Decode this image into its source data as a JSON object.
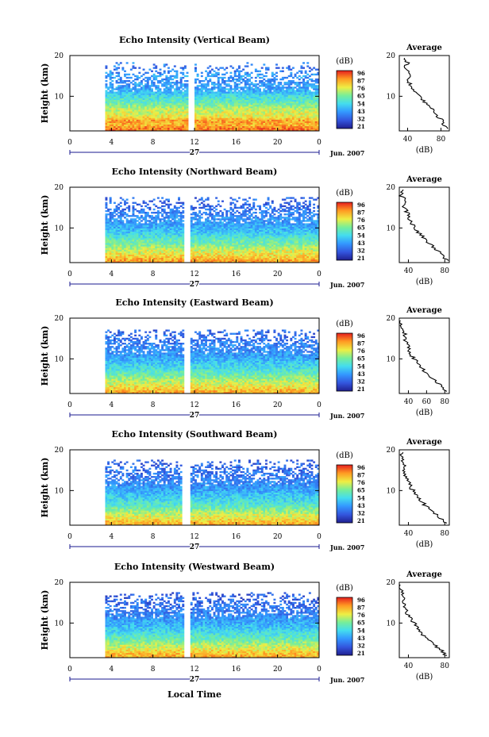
{
  "figure": {
    "xlabel": "Local Time",
    "date_label": "Jun. 2007",
    "day_label": "27",
    "x_ticks": [
      "0",
      "4",
      "8",
      "12",
      "16",
      "20",
      "0"
    ],
    "height_label": "Height (km)",
    "y_ticks": [
      "20",
      "10"
    ],
    "colorbar_unit": "(dB)",
    "colorbar_ticks": [
      "96",
      "87",
      "76",
      "65",
      "54",
      "43",
      "32",
      "21"
    ],
    "avg_title": "Average",
    "avg_unit": "(dB)"
  },
  "chart_data": [
    {
      "type": "heatmap",
      "title": "Echo Intensity (Vertical Beam)",
      "xlabel": "Local Time",
      "ylabel": "Height (km)",
      "xlim": [
        0,
        24
      ],
      "ylim": [
        1.5,
        20
      ],
      "zlim": [
        21,
        96
      ],
      "data_start_hour": 3.5,
      "gap_hours": [
        11.4,
        11.9
      ],
      "max_echo_height_km": 18.5,
      "avg_profile": {
        "x_ticks": [
          "40",
          "80"
        ],
        "xlim": [
          30,
          90
        ],
        "points": [
          [
            88,
            2
          ],
          [
            82,
            3
          ],
          [
            84,
            4
          ],
          [
            75,
            5
          ],
          [
            72,
            6
          ],
          [
            70,
            7
          ],
          [
            63,
            8
          ],
          [
            58,
            9
          ],
          [
            55,
            10
          ],
          [
            48,
            11
          ],
          [
            44,
            12
          ],
          [
            43,
            13
          ],
          [
            40,
            14
          ],
          [
            45,
            15
          ],
          [
            40,
            16
          ],
          [
            36,
            17
          ],
          [
            40,
            18
          ],
          [
            38,
            19
          ],
          [
            36,
            19.7
          ]
        ]
      }
    },
    {
      "type": "heatmap",
      "title": "Echo Intensity (Northward Beam)",
      "xlabel": "Local Time",
      "ylabel": "Height (km)",
      "xlim": [
        0,
        24
      ],
      "ylim": [
        1.5,
        20
      ],
      "zlim": [
        21,
        96
      ],
      "data_start_hour": 3.5,
      "gap_hours": [
        11.1,
        11.6
      ],
      "max_echo_height_km": 17.5,
      "avg_profile": {
        "x_ticks": [
          "40",
          "80"
        ],
        "xlim": [
          30,
          85
        ],
        "points": [
          [
            84,
            2
          ],
          [
            78,
            3
          ],
          [
            74,
            4
          ],
          [
            70,
            5
          ],
          [
            63,
            6
          ],
          [
            60,
            7
          ],
          [
            55,
            8
          ],
          [
            50,
            9
          ],
          [
            47,
            10
          ],
          [
            44,
            11
          ],
          [
            42,
            12
          ],
          [
            40,
            13
          ],
          [
            38,
            14
          ],
          [
            36,
            15
          ],
          [
            34,
            16
          ],
          [
            36,
            17
          ],
          [
            32,
            18
          ],
          [
            33,
            19
          ],
          [
            32,
            19.7
          ]
        ]
      }
    },
    {
      "type": "heatmap",
      "title": "Echo Intensity (Eastward Beam)",
      "xlabel": "Local Time",
      "ylabel": "Height (km)",
      "xlim": [
        0,
        24
      ],
      "ylim": [
        1.5,
        20
      ],
      "zlim": [
        21,
        96
      ],
      "data_start_hour": 3.5,
      "gap_hours": [
        11.1,
        11.6
      ],
      "max_echo_height_km": 17.0,
      "avg_profile": {
        "x_ticks": [
          "40",
          "60",
          "80"
        ],
        "xlim": [
          30,
          85
        ],
        "points": [
          [
            82,
            2
          ],
          [
            77,
            3
          ],
          [
            72,
            4
          ],
          [
            68,
            5
          ],
          [
            62,
            6
          ],
          [
            58,
            7
          ],
          [
            53,
            8
          ],
          [
            50,
            9
          ],
          [
            46,
            10
          ],
          [
            43,
            11
          ],
          [
            41,
            12
          ],
          [
            40,
            13
          ],
          [
            38,
            14
          ],
          [
            36,
            15
          ],
          [
            36,
            16
          ],
          [
            34,
            17
          ],
          [
            33,
            18
          ],
          [
            32,
            19
          ],
          [
            32,
            19.7
          ]
        ]
      }
    },
    {
      "type": "heatmap",
      "title": "Echo Intensity (Southward Beam)",
      "xlabel": "Local Time",
      "ylabel": "Height (km)",
      "xlim": [
        0,
        24
      ],
      "ylim": [
        1.5,
        20
      ],
      "zlim": [
        21,
        96
      ],
      "data_start_hour": 3.5,
      "gap_hours": [
        10.8,
        11.5
      ],
      "max_echo_height_km": 17.5,
      "avg_profile": {
        "x_ticks": [
          "40",
          "80"
        ],
        "xlim": [
          30,
          85
        ],
        "points": [
          [
            82,
            2
          ],
          [
            76,
            3
          ],
          [
            72,
            4
          ],
          [
            66,
            5
          ],
          [
            60,
            6
          ],
          [
            56,
            7
          ],
          [
            52,
            8
          ],
          [
            49,
            9
          ],
          [
            45,
            10
          ],
          [
            42,
            11
          ],
          [
            40,
            12
          ],
          [
            38,
            13
          ],
          [
            37,
            14
          ],
          [
            36,
            15
          ],
          [
            35,
            16
          ],
          [
            34,
            17
          ],
          [
            33,
            18
          ],
          [
            33,
            19
          ],
          [
            32,
            19.7
          ]
        ]
      }
    },
    {
      "type": "heatmap",
      "title": "Echo Intensity (Westward Beam)",
      "xlabel": "Local Time",
      "ylabel": "Height (km)",
      "xlim": [
        0,
        24
      ],
      "ylim": [
        1.5,
        20
      ],
      "zlim": [
        21,
        96
      ],
      "data_start_hour": 3.5,
      "gap_hours": [
        11.1,
        11.6
      ],
      "max_echo_height_km": 17.5,
      "avg_profile": {
        "x_ticks": [
          "40",
          "80"
        ],
        "xlim": [
          30,
          85
        ],
        "points": [
          [
            82,
            2
          ],
          [
            78,
            3
          ],
          [
            72,
            4
          ],
          [
            67,
            5
          ],
          [
            61,
            6
          ],
          [
            57,
            7
          ],
          [
            53,
            8
          ],
          [
            49,
            9
          ],
          [
            46,
            10
          ],
          [
            43,
            11
          ],
          [
            40,
            12
          ],
          [
            38,
            13
          ],
          [
            36,
            14
          ],
          [
            35,
            15
          ],
          [
            34,
            16
          ],
          [
            33,
            17
          ],
          [
            33,
            18
          ],
          [
            32,
            19
          ],
          [
            32,
            19.7
          ]
        ]
      }
    }
  ]
}
